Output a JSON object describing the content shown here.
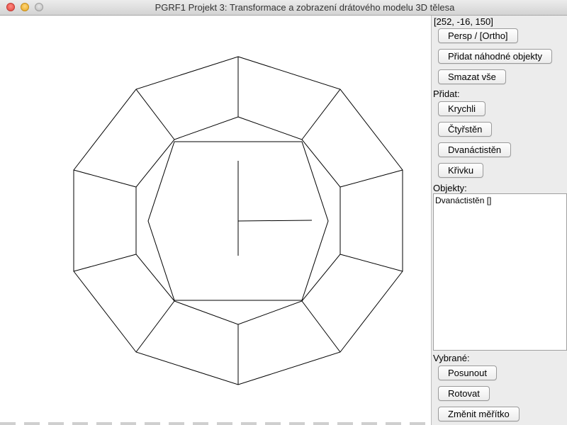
{
  "window": {
    "title": "PGRF1 Projekt 3: Transformace a zobrazení drátového modelu 3D tělesa"
  },
  "panel": {
    "coordinates": "[252, -16, 150]",
    "projection_button": "Persp / [Ortho]",
    "add_random_button": "Přidat náhodné objekty",
    "delete_all_button": "Smazat vše",
    "add_label": "Přidat:",
    "add_buttons": {
      "cube": "Krychli",
      "tetrahedron": "Čtyřstěn",
      "dodecahedron": "Dvanáctistěn",
      "curve": "Křivku"
    },
    "objects_label": "Objekty:",
    "objects": [
      "Dvanáctistěn []"
    ],
    "selected_label": "Vybrané:",
    "selected_buttons": {
      "move": "Posunout",
      "rotate": "Rotovat",
      "scale": "Změnit měřítko"
    }
  },
  "colors": {
    "wireframe": "#000000",
    "panel_background": "#ececec"
  }
}
